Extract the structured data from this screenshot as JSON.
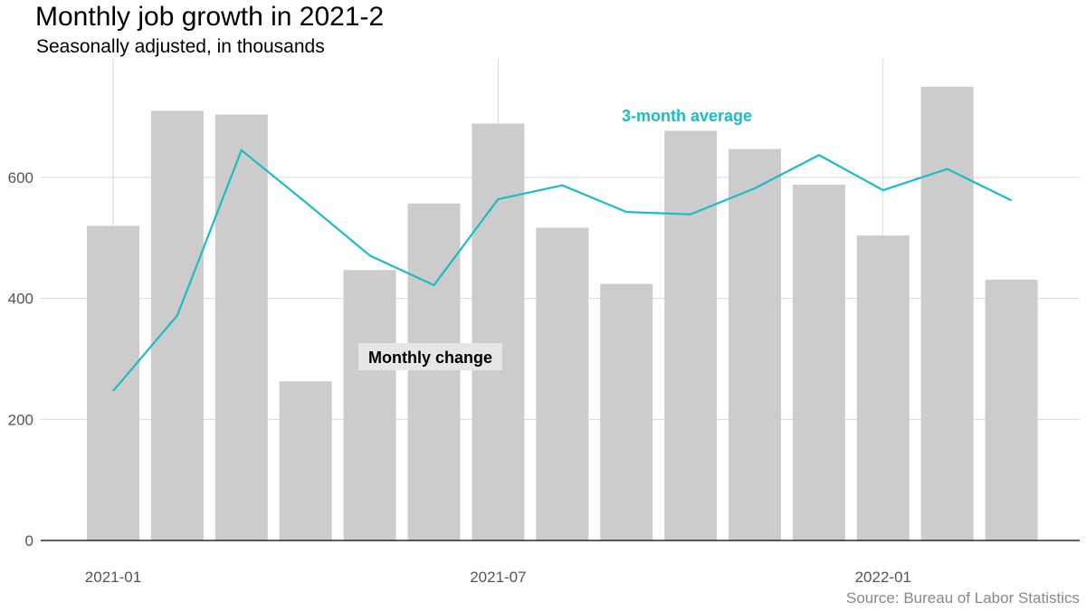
{
  "title": "Monthly job growth in 2021-2",
  "subtitle": "Seasonally adjusted, in thousands",
  "caption": "Source: Bureau of Labor Statistics",
  "colors": {
    "bar": "#cccccc",
    "line": "#1cbcc4",
    "grid": "#d9d9d9",
    "axis": "#000000",
    "label_box": "#e6e6e6"
  },
  "chart_data": {
    "type": "bar",
    "xlabel": "",
    "ylabel": "",
    "categories": [
      "2021-01",
      "2021-02",
      "2021-03",
      "2021-04",
      "2021-05",
      "2021-06",
      "2021-07",
      "2021-08",
      "2021-09",
      "2021-10",
      "2021-11",
      "2021-12",
      "2022-01",
      "2022-02",
      "2022-03"
    ],
    "series": [
      {
        "name": "Monthly change",
        "type": "bar",
        "values": [
          520,
          710,
          704,
          263,
          447,
          557,
          689,
          517,
          424,
          677,
          647,
          588,
          504,
          750,
          431
        ]
      },
      {
        "name": "3-month average",
        "type": "line",
        "values": [
          247,
          372,
          645,
          559,
          471,
          422,
          564,
          587,
          543,
          539,
          582,
          637,
          579,
          614,
          562
        ]
      }
    ],
    "ylim": [
      0,
      790
    ],
    "yticks": [
      0,
      200,
      400,
      600
    ],
    "xtick_labels": [
      "2021-01",
      "2021-07",
      "2022-01"
    ],
    "grid": true
  }
}
